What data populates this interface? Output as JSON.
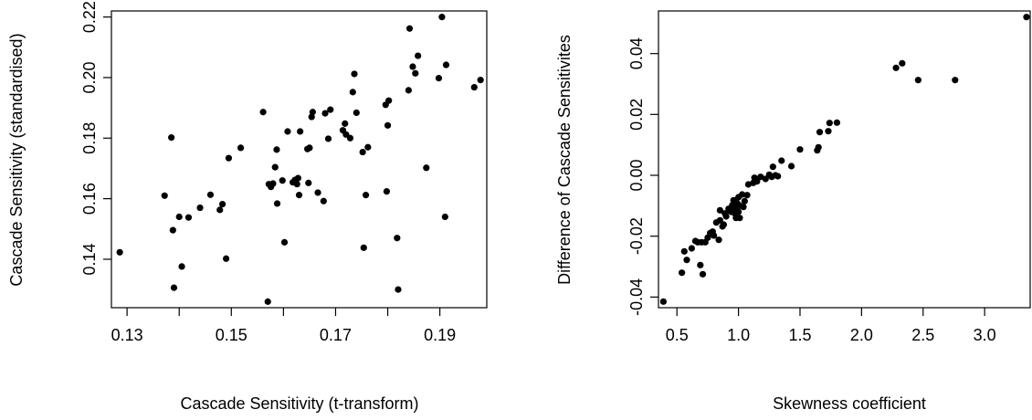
{
  "chart_data": [
    {
      "type": "scatter",
      "title": "",
      "xlabel": "Cascade Sensitivity (t-transform)",
      "ylabel": "Cascade Sensitivity (standardised)",
      "xlim": [
        0.127,
        0.199
      ],
      "ylim": [
        0.124,
        0.222
      ],
      "xticks": [
        0.13,
        0.14,
        0.15,
        0.16,
        0.17,
        0.18,
        0.19
      ],
      "xtick_labels": [
        "0.13",
        "",
        "0.15",
        "",
        "0.17",
        "",
        "0.19"
      ],
      "yticks": [
        0.14,
        0.16,
        0.18,
        0.2,
        0.22
      ],
      "ytick_labels": [
        "0.14",
        "0.16",
        "0.18",
        "0.20",
        "0.22"
      ],
      "grid": false,
      "points": [
        [
          0.1286,
          0.1423
        ],
        [
          0.1372,
          0.161
        ],
        [
          0.1385,
          0.1802
        ],
        [
          0.1388,
          0.1496
        ],
        [
          0.139,
          0.1306
        ],
        [
          0.14,
          0.154
        ],
        [
          0.1405,
          0.1376
        ],
        [
          0.1418,
          0.1538
        ],
        [
          0.144,
          0.157
        ],
        [
          0.146,
          0.1613
        ],
        [
          0.1478,
          0.1563
        ],
        [
          0.1483,
          0.1582
        ],
        [
          0.149,
          0.1402
        ],
        [
          0.1495,
          0.1734
        ],
        [
          0.1518,
          0.1768
        ],
        [
          0.1561,
          0.1886
        ],
        [
          0.1572,
          0.1648
        ],
        [
          0.157,
          0.126
        ],
        [
          0.1576,
          0.1639
        ],
        [
          0.158,
          0.165
        ],
        [
          0.1584,
          0.1704
        ],
        [
          0.1588,
          0.1584
        ],
        [
          0.1587,
          0.1762
        ],
        [
          0.1598,
          0.166
        ],
        [
          0.1602,
          0.1456
        ],
        [
          0.1608,
          0.1822
        ],
        [
          0.1618,
          0.1654
        ],
        [
          0.1622,
          0.1662
        ],
        [
          0.1626,
          0.1648
        ],
        [
          0.1628,
          0.1668
        ],
        [
          0.163,
          0.1612
        ],
        [
          0.1632,
          0.1822
        ],
        [
          0.1646,
          0.1764
        ],
        [
          0.1648,
          0.1652
        ],
        [
          0.165,
          0.1768
        ],
        [
          0.1654,
          0.187
        ],
        [
          0.1656,
          0.1886
        ],
        [
          0.1666,
          0.162
        ],
        [
          0.1677,
          0.1592
        ],
        [
          0.168,
          0.1882
        ],
        [
          0.1686,
          0.1798
        ],
        [
          0.169,
          0.1894
        ],
        [
          0.1714,
          0.1826
        ],
        [
          0.1718,
          0.1848
        ],
        [
          0.172,
          0.1812
        ],
        [
          0.1728,
          0.18
        ],
        [
          0.1733,
          0.1952
        ],
        [
          0.1736,
          0.2012
        ],
        [
          0.174,
          0.1884
        ],
        [
          0.1752,
          0.1754
        ],
        [
          0.1754,
          0.1438
        ],
        [
          0.1758,
          0.1612
        ],
        [
          0.1762,
          0.177
        ],
        [
          0.1796,
          0.191
        ],
        [
          0.1798,
          0.1624
        ],
        [
          0.18,
          0.1842
        ],
        [
          0.1802,
          0.1924
        ],
        [
          0.1818,
          0.147
        ],
        [
          0.182,
          0.13
        ],
        [
          0.184,
          0.1958
        ],
        [
          0.1842,
          0.2162
        ],
        [
          0.1848,
          0.2036
        ],
        [
          0.1853,
          0.2014
        ],
        [
          0.1858,
          0.2072
        ],
        [
          0.1874,
          0.1702
        ],
        [
          0.1898,
          0.1998
        ],
        [
          0.1904,
          0.22
        ],
        [
          0.191,
          0.154
        ],
        [
          0.1912,
          0.2042
        ],
        [
          0.1966,
          0.1968
        ],
        [
          0.1978,
          0.1992
        ]
      ]
    },
    {
      "type": "scatter",
      "title": "",
      "xlabel": "Skewness coefficient",
      "ylabel": "Difference of Cascade Sensitivites",
      "xlim": [
        0.35,
        3.37
      ],
      "ylim": [
        -0.0435,
        0.054
      ],
      "xticks": [
        0.5,
        1.0,
        1.5,
        2.0,
        2.5,
        3.0
      ],
      "xtick_labels": [
        "0.5",
        "1.0",
        "1.5",
        "2.0",
        "2.5",
        "3.0"
      ],
      "yticks": [
        -0.04,
        -0.02,
        0.0,
        0.02,
        0.04
      ],
      "ytick_labels": [
        "-0.04",
        "-0.02",
        "0.00",
        "0.02",
        "0.04"
      ],
      "grid": false,
      "points": [
        [
          0.39,
          -0.0415
        ],
        [
          0.54,
          -0.032
        ],
        [
          0.56,
          -0.025
        ],
        [
          0.58,
          -0.0278
        ],
        [
          0.62,
          -0.024
        ],
        [
          0.65,
          -0.0216
        ],
        [
          0.67,
          -0.022
        ],
        [
          0.69,
          -0.0295
        ],
        [
          0.7,
          -0.022
        ],
        [
          0.71,
          -0.0325
        ],
        [
          0.73,
          -0.022
        ],
        [
          0.75,
          -0.0205
        ],
        [
          0.77,
          -0.019
        ],
        [
          0.79,
          -0.0185
        ],
        [
          0.8,
          -0.0198
        ],
        [
          0.82,
          -0.0155
        ],
        [
          0.84,
          -0.0212
        ],
        [
          0.85,
          -0.0148
        ],
        [
          0.85,
          -0.0115
        ],
        [
          0.87,
          -0.0168
        ],
        [
          0.88,
          -0.0162
        ],
        [
          0.89,
          -0.0125
        ],
        [
          0.9,
          -0.0135
        ],
        [
          0.92,
          -0.011
        ],
        [
          0.94,
          -0.012
        ],
        [
          0.95,
          -0.0098
        ],
        [
          0.96,
          -0.0082
        ],
        [
          0.97,
          -0.0108
        ],
        [
          0.97,
          -0.0125
        ],
        [
          0.98,
          -0.014
        ],
        [
          0.99,
          -0.0092
        ],
        [
          1.0,
          -0.012
        ],
        [
          1.0,
          -0.0072
        ],
        [
          1.01,
          -0.01
        ],
        [
          1.01,
          -0.014
        ],
        [
          1.03,
          -0.0063
        ],
        [
          1.04,
          -0.0104
        ],
        [
          1.05,
          -0.0085
        ],
        [
          1.07,
          -0.0065
        ],
        [
          1.08,
          -0.003
        ],
        [
          1.12,
          -0.0025
        ],
        [
          1.13,
          -0.0008
        ],
        [
          1.15,
          -0.002
        ],
        [
          1.18,
          -0.0005
        ],
        [
          1.22,
          -0.0012
        ],
        [
          1.25,
          0.0002
        ],
        [
          1.27,
          -0.0005
        ],
        [
          1.28,
          0.0028
        ],
        [
          1.3,
          0.0
        ],
        [
          1.32,
          -0.0003
        ],
        [
          1.35,
          0.0048
        ],
        [
          1.43,
          0.003
        ],
        [
          1.5,
          0.0085
        ],
        [
          1.64,
          0.0082
        ],
        [
          1.65,
          0.0092
        ],
        [
          1.66,
          0.0142
        ],
        [
          1.73,
          0.0145
        ],
        [
          1.74,
          0.0172
        ],
        [
          1.8,
          0.0173
        ],
        [
          2.28,
          0.0353
        ],
        [
          2.33,
          0.0368
        ],
        [
          2.46,
          0.0313
        ],
        [
          2.76,
          0.0313
        ],
        [
          3.34,
          0.052
        ]
      ]
    }
  ]
}
